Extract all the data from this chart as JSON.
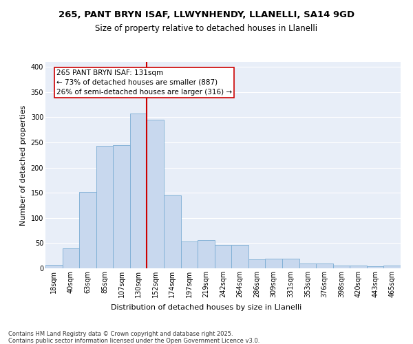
{
  "title1": "265, PANT BRYN ISAF, LLWYNHENDY, LLANELLI, SA14 9GD",
  "title2": "Size of property relative to detached houses in Llanelli",
  "xlabel": "Distribution of detached houses by size in Llanelli",
  "ylabel": "Number of detached properties",
  "categories": [
    "18sqm",
    "40sqm",
    "63sqm",
    "85sqm",
    "107sqm",
    "130sqm",
    "152sqm",
    "174sqm",
    "197sqm",
    "219sqm",
    "242sqm",
    "264sqm",
    "286sqm",
    "309sqm",
    "331sqm",
    "353sqm",
    "376sqm",
    "398sqm",
    "420sqm",
    "443sqm",
    "465sqm"
  ],
  "values": [
    7,
    39,
    152,
    243,
    244,
    307,
    295,
    145,
    53,
    56,
    47,
    47,
    18,
    19,
    19,
    10,
    10,
    5,
    5,
    4,
    5
  ],
  "bar_color": "#c8d8ee",
  "bar_edge_color": "#7badd4",
  "bg_color": "#e8eef8",
  "grid_color": "#ffffff",
  "vline_index": 5.5,
  "vline_color": "#cc0000",
  "annotation_text": "265 PANT BRYN ISAF: 131sqm\n← 73% of detached houses are smaller (887)\n26% of semi-detached houses are larger (316) →",
  "annotation_box_color": "#cc0000",
  "ylim": [
    0,
    410
  ],
  "yticks": [
    0,
    50,
    100,
    150,
    200,
    250,
    300,
    350,
    400
  ],
  "footnote": "Contains HM Land Registry data © Crown copyright and database right 2025.\nContains public sector information licensed under the Open Government Licence v3.0.",
  "title_fontsize": 9.5,
  "subtitle_fontsize": 8.5,
  "label_fontsize": 8,
  "tick_fontsize": 7,
  "annot_fontsize": 7.5
}
